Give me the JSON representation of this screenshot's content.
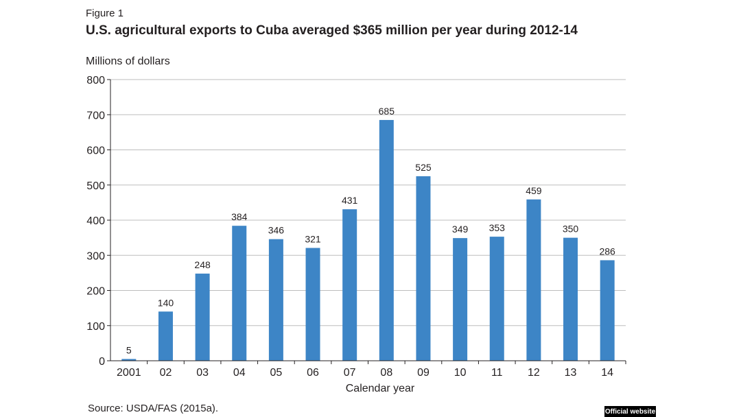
{
  "figure_label": "Figure 1",
  "source_note": "Source: USDA/FAS (2015a).",
  "badge": "Official website",
  "chart_data": {
    "type": "bar",
    "title": "U.S. agricultural exports to Cuba averaged $365 million per year during 2012-14",
    "ylabel": "Millions of dollars",
    "xlabel": "Calendar year",
    "ylim": [
      0,
      800
    ],
    "yticks": [
      0,
      100,
      200,
      300,
      400,
      500,
      600,
      700,
      800
    ],
    "grid": true,
    "categories": [
      "2001",
      "02",
      "03",
      "04",
      "05",
      "06",
      "07",
      "08",
      "09",
      "10",
      "11",
      "12",
      "13",
      "14"
    ],
    "values": [
      5,
      140,
      248,
      384,
      346,
      321,
      431,
      685,
      525,
      349,
      353,
      459,
      350,
      286
    ],
    "bar_color": "#3d85c6"
  }
}
